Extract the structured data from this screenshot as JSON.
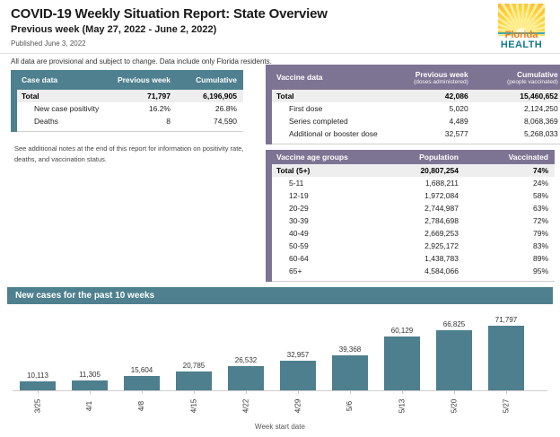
{
  "header": {
    "title": "COVID-19 Weekly Situation Report: State Overview",
    "subtitle": "Previous week (May 27, 2022 - June 2, 2022)",
    "published": "Published June 3, 2022",
    "disclaimer": "All data are provisional and subject to change. Data include only Florida residents.",
    "logo": {
      "line1": "Florida",
      "line2": "HEALTH"
    }
  },
  "colors": {
    "teal": "#4e808f",
    "purple": "#7d7493",
    "bar": "#4d7f8e",
    "total_row_bg": "#efeeee"
  },
  "tables": {
    "case_data": {
      "columns": [
        "Case data",
        "Previous week",
        "Cumulative"
      ],
      "rows": [
        {
          "label": "Total",
          "values": [
            "71,797",
            "6,196,905"
          ],
          "bold": true
        },
        {
          "label": "New case positivity",
          "values": [
            "16.2%",
            "26.8%"
          ],
          "indent": true
        },
        {
          "label": "Deaths",
          "values": [
            "8",
            "74,590"
          ],
          "indent": true
        }
      ]
    },
    "note": "See additional notes at the end of this report for information on positivity rate, deaths, and vaccination status.",
    "vaccine_data": {
      "columns": [
        "Vaccine data",
        "Previous week",
        "Cumulative"
      ],
      "column_subs": [
        "",
        "(doses administered)",
        "(people vaccinated)"
      ],
      "rows": [
        {
          "label": "Total",
          "values": [
            "42,086",
            "15,460,652"
          ],
          "bold": true
        },
        {
          "label": "First dose",
          "values": [
            "5,020",
            "2,124,250"
          ],
          "indent": true
        },
        {
          "label": "Series completed",
          "values": [
            "4,489",
            "8,068,369"
          ],
          "indent": true
        },
        {
          "label": "Additional or booster dose",
          "values": [
            "32,577",
            "5,268,033"
          ],
          "indent": true
        }
      ]
    },
    "vaccine_age_groups": {
      "columns": [
        "Vaccine age groups",
        "Population",
        "Vaccinated"
      ],
      "rows": [
        {
          "label": "Total (5+)",
          "values": [
            "20,807,254",
            "74%"
          ],
          "bold": true
        },
        {
          "label": "5-11",
          "values": [
            "1,688,211",
            "24%"
          ],
          "indent": true
        },
        {
          "label": "12-19",
          "values": [
            "1,972,084",
            "58%"
          ],
          "indent": true
        },
        {
          "label": "20-29",
          "values": [
            "2,744,987",
            "63%"
          ],
          "indent": true
        },
        {
          "label": "30-39",
          "values": [
            "2,784,698",
            "72%"
          ],
          "indent": true
        },
        {
          "label": "40-49",
          "values": [
            "2,669,253",
            "79%"
          ],
          "indent": true
        },
        {
          "label": "50-59",
          "values": [
            "2,925,172",
            "83%"
          ],
          "indent": true
        },
        {
          "label": "60-64",
          "values": [
            "1,438,783",
            "89%"
          ],
          "indent": true
        },
        {
          "label": "65+",
          "values": [
            "4,584,066",
            "95%"
          ],
          "indent": true
        }
      ]
    }
  },
  "chart_section": {
    "title": "New cases for the past 10 weeks"
  },
  "chart_data": {
    "type": "bar",
    "title": "New cases for the past 10 weeks",
    "categories": [
      "3/25",
      "4/1",
      "4/8",
      "4/15",
      "4/22",
      "4/29",
      "5/6",
      "5/13",
      "5/20",
      "5/27"
    ],
    "values": [
      10113,
      11305,
      15604,
      20785,
      26532,
      32957,
      39368,
      60129,
      66825,
      71797
    ],
    "value_labels": [
      "10,113",
      "11,305",
      "15,604",
      "20,785",
      "26,532",
      "32,957",
      "39,368",
      "60,129",
      "66,825",
      "71,797"
    ],
    "xlabel": "Week start date",
    "ylabel": "",
    "ylim": [
      0,
      75000
    ],
    "grid": false,
    "data_labels": true,
    "legend": "none",
    "bar_color": "#4d7f8e"
  }
}
